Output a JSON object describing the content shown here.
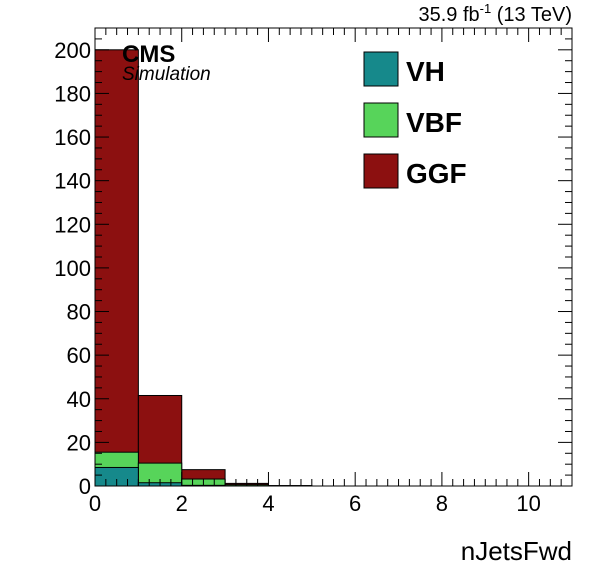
{
  "chart_data": {
    "type": "bar",
    "stacked": true,
    "histogram": true,
    "x_bin_edges": [
      0,
      1,
      2,
      3,
      4,
      5,
      6,
      7,
      8,
      9,
      10,
      11
    ],
    "series": [
      {
        "name": "VH",
        "color": "#16898b",
        "values": [
          8.5,
          1.5,
          0.3,
          0.1,
          0,
          0,
          0,
          0,
          0,
          0,
          0
        ]
      },
      {
        "name": "VBF",
        "color": "#57d45a",
        "values": [
          7.0,
          9.0,
          2.9,
          0.5,
          0.1,
          0,
          0,
          0,
          0,
          0,
          0
        ]
      },
      {
        "name": "GGF",
        "color": "#8c1010",
        "values": [
          184.5,
          31.0,
          4.3,
          0.6,
          0.1,
          0,
          0,
          0,
          0,
          0,
          0
        ]
      }
    ],
    "xlabel": "nJetsFwd",
    "ylabel": "",
    "xlim": [
      0,
      11
    ],
    "ylim": [
      0,
      210
    ],
    "x_ticks": [
      0,
      2,
      4,
      6,
      8,
      10
    ],
    "y_ticks": [
      0,
      20,
      40,
      60,
      80,
      100,
      120,
      140,
      160,
      180,
      200
    ],
    "grid": false,
    "legend_position": "top-right",
    "experiment_label": "CMS",
    "experiment_sublabel": "Simulation",
    "lumi_label": {
      "value": "35.9",
      "unit": "fb",
      "exponent": "-1",
      "energy": "(13 TeV)"
    }
  }
}
